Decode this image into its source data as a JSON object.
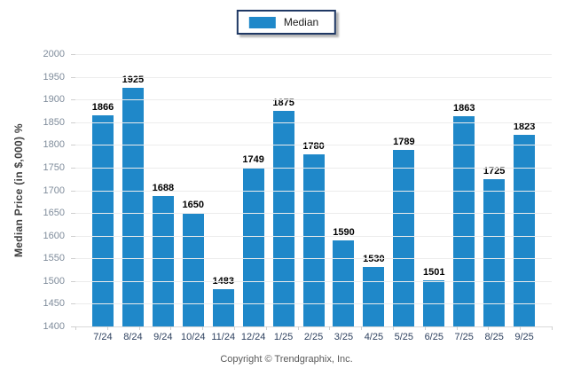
{
  "legend": {
    "label": "Median",
    "swatch_color": "#1f88c9"
  },
  "footer": {
    "copyright": "Copyright © Trendgraphix, Inc."
  },
  "chart_data": {
    "type": "bar",
    "title": "",
    "xlabel": "",
    "ylabel": "Median Price (in $,000) %",
    "categories": [
      "7/24",
      "8/24",
      "9/24",
      "10/24",
      "11/24",
      "12/24",
      "1/25",
      "2/25",
      "3/25",
      "4/25",
      "5/25",
      "6/25",
      "7/25",
      "8/25",
      "9/25"
    ],
    "series": [
      {
        "name": "Median",
        "values": [
          1866,
          1925,
          1688,
          1650,
          1483,
          1749,
          1875,
          1780,
          1590,
          1530,
          1789,
          1501,
          1863,
          1725,
          1823
        ]
      }
    ],
    "ylim": [
      1400,
      2000
    ],
    "yticks": [
      1400,
      1450,
      1500,
      1550,
      1600,
      1650,
      1700,
      1750,
      1800,
      1850,
      1900,
      1950,
      2000
    ],
    "grid": "horizontal",
    "legend_position": "top-center",
    "value_labels": true
  },
  "colors": {
    "bar": "#1f88c9",
    "grid": "#ececec",
    "axis_line": "#d9d9d9",
    "tick_mark": "#cfcfcf",
    "y_tick_text": "#7f8c9b",
    "x_tick_text": "#2f4260",
    "value_text": "#000000",
    "y_axis_title_text": "#3f3f3f",
    "footer_text": "#595959",
    "legend_border": "#1f3864"
  }
}
